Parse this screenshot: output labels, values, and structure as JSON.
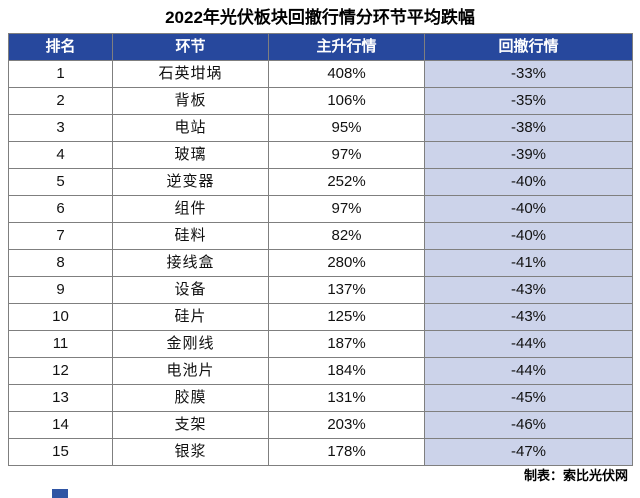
{
  "title": "2022年光伏板块回撤行情分环节平均跌幅",
  "footer": "制表：索比光伏网",
  "colors": {
    "header_bg": "#27489d",
    "header_text": "#ffffff",
    "drawdown_bg": "#ccd3ea",
    "border": "#7f7f7f",
    "accent_blue": "#2f55a4"
  },
  "chart_data": {
    "type": "table",
    "title": "2022年光伏板块回撤行情分环节平均跌幅",
    "columns": [
      "排名",
      "环节",
      "主升行情",
      "回撤行情"
    ],
    "rows": [
      [
        "1",
        "石英坩埚",
        "408%",
        "-33%"
      ],
      [
        "2",
        "背板",
        "106%",
        "-35%"
      ],
      [
        "3",
        "电站",
        "95%",
        "-38%"
      ],
      [
        "4",
        "玻璃",
        "97%",
        "-39%"
      ],
      [
        "5",
        "逆变器",
        "252%",
        "-40%"
      ],
      [
        "6",
        "组件",
        "97%",
        "-40%"
      ],
      [
        "7",
        "硅料",
        "82%",
        "-40%"
      ],
      [
        "8",
        "接线盒",
        "280%",
        "-41%"
      ],
      [
        "9",
        "设备",
        "137%",
        "-43%"
      ],
      [
        "10",
        "硅片",
        "125%",
        "-43%"
      ],
      [
        "11",
        "金刚线",
        "187%",
        "-44%"
      ],
      [
        "12",
        "电池片",
        "184%",
        "-44%"
      ],
      [
        "13",
        "胶膜",
        "131%",
        "-45%"
      ],
      [
        "14",
        "支架",
        "203%",
        "-46%"
      ],
      [
        "15",
        "银浆",
        "178%",
        "-47%"
      ]
    ]
  }
}
